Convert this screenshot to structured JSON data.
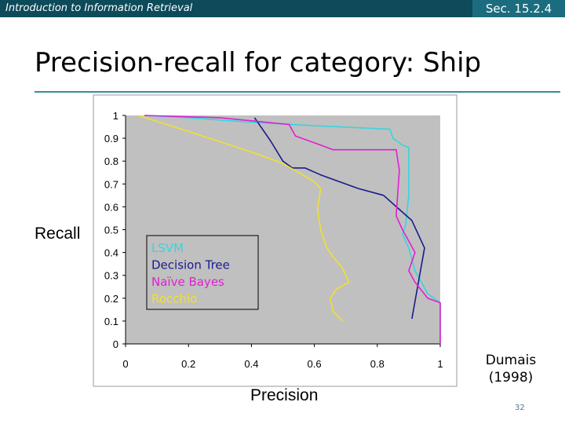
{
  "header": {
    "course": "Introduction to Information Retrieval",
    "section": "Sec. 15.2.4"
  },
  "slide": {
    "title": "Precision-recall for category: Ship",
    "credit": [
      "Dumais",
      "(1998)"
    ],
    "page_number": "32"
  },
  "colors": {
    "bar": "#0d4a5a",
    "section_bg": "#1b6c7e",
    "rule": "#3a8a9c",
    "plot_bg": "#c0c0c0"
  },
  "chart_data": {
    "type": "line",
    "xlabel": "Precision",
    "ylabel": "Recall",
    "xlim": [
      0,
      1
    ],
    "ylim": [
      0,
      1
    ],
    "xticks": [
      "0",
      "0.2",
      "0.4",
      "0.6",
      "0.8",
      "1"
    ],
    "yticks": [
      "0",
      "0.1",
      "0.2",
      "0.3",
      "0.4",
      "0.5",
      "0.6",
      "0.7",
      "0.8",
      "0.9",
      "1"
    ],
    "grid": false,
    "legend_position": "center-left",
    "series": [
      {
        "name": "LSVM",
        "color": "#33d6e0",
        "points": [
          [
            0.06,
            1.0
          ],
          [
            0.2,
            0.99
          ],
          [
            0.4,
            0.97
          ],
          [
            0.6,
            0.955
          ],
          [
            0.84,
            0.94
          ],
          [
            0.85,
            0.9
          ],
          [
            0.88,
            0.87
          ],
          [
            0.9,
            0.86
          ],
          [
            0.9,
            0.65
          ],
          [
            0.89,
            0.52
          ],
          [
            0.88,
            0.48
          ],
          [
            0.9,
            0.42
          ],
          [
            0.92,
            0.32
          ],
          [
            0.96,
            0.22
          ],
          [
            1.0,
            0.18
          ],
          [
            1.0,
            0.0
          ]
        ]
      },
      {
        "name": "Decision Tree",
        "color": "#1a1a8c",
        "points": [
          [
            0.41,
            0.99
          ],
          [
            0.46,
            0.89
          ],
          [
            0.5,
            0.8
          ],
          [
            0.53,
            0.77
          ],
          [
            0.57,
            0.77
          ],
          [
            0.62,
            0.74
          ],
          [
            0.74,
            0.68
          ],
          [
            0.82,
            0.65
          ],
          [
            0.91,
            0.54
          ],
          [
            0.95,
            0.42
          ],
          [
            0.91,
            0.11
          ]
        ]
      },
      {
        "name": "Naïve Bayes",
        "color": "#e020d0",
        "points": [
          [
            0.06,
            1.0
          ],
          [
            0.3,
            0.99
          ],
          [
            0.52,
            0.96
          ],
          [
            0.54,
            0.91
          ],
          [
            0.6,
            0.88
          ],
          [
            0.66,
            0.85
          ],
          [
            0.86,
            0.85
          ],
          [
            0.87,
            0.76
          ],
          [
            0.86,
            0.56
          ],
          [
            0.88,
            0.5
          ],
          [
            0.92,
            0.4
          ],
          [
            0.9,
            0.32
          ],
          [
            0.92,
            0.27
          ],
          [
            0.96,
            0.2
          ],
          [
            1.0,
            0.18
          ],
          [
            1.0,
            0.0
          ]
        ]
      },
      {
        "name": "Rocchio",
        "color": "#f0e030",
        "points": [
          [
            0.04,
            1.0
          ],
          [
            0.2,
            0.93
          ],
          [
            0.4,
            0.84
          ],
          [
            0.5,
            0.79
          ],
          [
            0.6,
            0.71
          ],
          [
            0.62,
            0.68
          ],
          [
            0.61,
            0.59
          ],
          [
            0.62,
            0.5
          ],
          [
            0.64,
            0.42
          ],
          [
            0.66,
            0.38
          ],
          [
            0.69,
            0.33
          ],
          [
            0.71,
            0.27
          ],
          [
            0.67,
            0.24
          ],
          [
            0.65,
            0.2
          ],
          [
            0.66,
            0.14
          ],
          [
            0.69,
            0.1
          ]
        ]
      }
    ]
  }
}
